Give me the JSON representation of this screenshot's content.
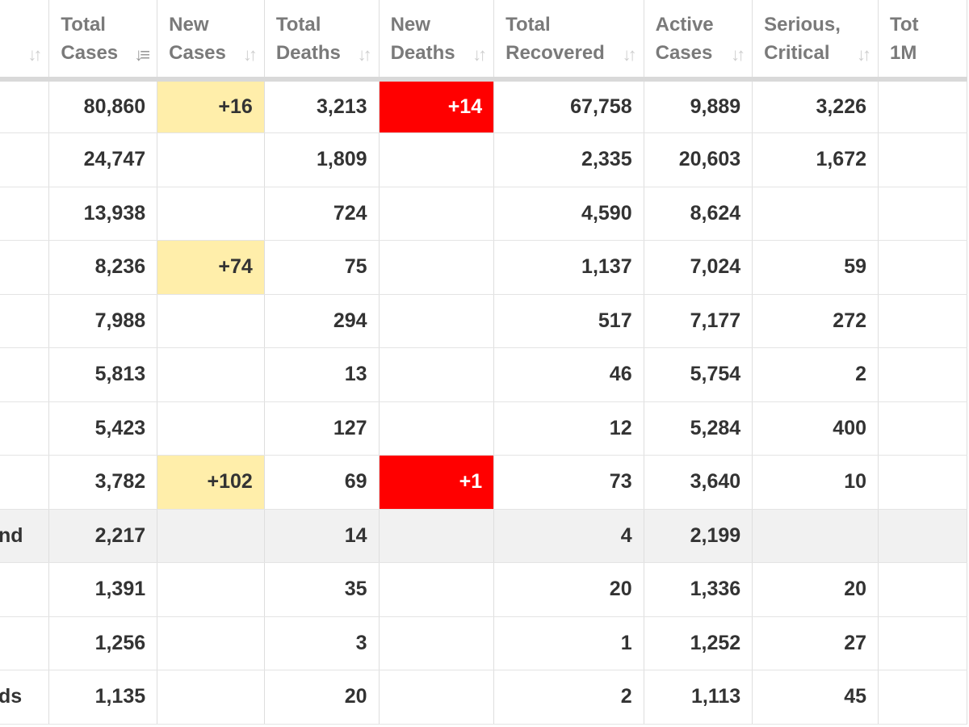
{
  "colors": {
    "new_cases_bg": "#ffeeaa",
    "new_deaths_bg": "#ff0000",
    "grey_row_bg": "#f1f1f1",
    "header_text": "#7a7a7a",
    "cell_text": "#333333"
  },
  "headers": [
    {
      "line1": "",
      "line2": "",
      "sort": "↓↑"
    },
    {
      "line1": "Total",
      "line2": "Cases",
      "sort": "↓≡"
    },
    {
      "line1": "New",
      "line2": "Cases",
      "sort": "↓↑"
    },
    {
      "line1": "Total",
      "line2": "Deaths",
      "sort": "↓↑"
    },
    {
      "line1": "New",
      "line2": "Deaths",
      "sort": "↓↑"
    },
    {
      "line1": "Total",
      "line2": "Recovered",
      "sort": "↓↑"
    },
    {
      "line1": "Active",
      "line2": "Cases",
      "sort": "↓↑"
    },
    {
      "line1": "Serious,",
      "line2": "Critical",
      "sort": "↓↑"
    },
    {
      "line1": "Tot",
      "line2": "1M",
      "sort": ""
    }
  ],
  "rows": [
    {
      "country": "",
      "total_cases": "80,860",
      "new_cases": "+16",
      "total_deaths": "3,213",
      "new_deaths": "+14",
      "total_recovered": "67,758",
      "active_cases": "9,889",
      "serious": "3,226",
      "grey": false
    },
    {
      "country": "",
      "total_cases": "24,747",
      "new_cases": "",
      "total_deaths": "1,809",
      "new_deaths": "",
      "total_recovered": "2,335",
      "active_cases": "20,603",
      "serious": "1,672",
      "grey": false
    },
    {
      "country": "",
      "total_cases": "13,938",
      "new_cases": "",
      "total_deaths": "724",
      "new_deaths": "",
      "total_recovered": "4,590",
      "active_cases": "8,624",
      "serious": "",
      "grey": false
    },
    {
      "country": "",
      "total_cases": "8,236",
      "new_cases": "+74",
      "total_deaths": "75",
      "new_deaths": "",
      "total_recovered": "1,137",
      "active_cases": "7,024",
      "serious": "59",
      "grey": false
    },
    {
      "country": "",
      "total_cases": "7,988",
      "new_cases": "",
      "total_deaths": "294",
      "new_deaths": "",
      "total_recovered": "517",
      "active_cases": "7,177",
      "serious": "272",
      "grey": false
    },
    {
      "country": "",
      "total_cases": "5,813",
      "new_cases": "",
      "total_deaths": "13",
      "new_deaths": "",
      "total_recovered": "46",
      "active_cases": "5,754",
      "serious": "2",
      "grey": false
    },
    {
      "country": "",
      "total_cases": "5,423",
      "new_cases": "",
      "total_deaths": "127",
      "new_deaths": "",
      "total_recovered": "12",
      "active_cases": "5,284",
      "serious": "400",
      "grey": false
    },
    {
      "country": "",
      "total_cases": "3,782",
      "new_cases": "+102",
      "total_deaths": "69",
      "new_deaths": "+1",
      "total_recovered": "73",
      "active_cases": "3,640",
      "serious": "10",
      "grey": false
    },
    {
      "country": "nd",
      "total_cases": "2,217",
      "new_cases": "",
      "total_deaths": "14",
      "new_deaths": "",
      "total_recovered": "4",
      "active_cases": "2,199",
      "serious": "",
      "grey": true
    },
    {
      "country": "",
      "total_cases": "1,391",
      "new_cases": "",
      "total_deaths": "35",
      "new_deaths": "",
      "total_recovered": "20",
      "active_cases": "1,336",
      "serious": "20",
      "grey": false
    },
    {
      "country": "",
      "total_cases": "1,256",
      "new_cases": "",
      "total_deaths": "3",
      "new_deaths": "",
      "total_recovered": "1",
      "active_cases": "1,252",
      "serious": "27",
      "grey": false
    },
    {
      "country": "ds",
      "total_cases": "1,135",
      "new_cases": "",
      "total_deaths": "20",
      "new_deaths": "",
      "total_recovered": "2",
      "active_cases": "1,113",
      "serious": "45",
      "grey": false
    }
  ]
}
